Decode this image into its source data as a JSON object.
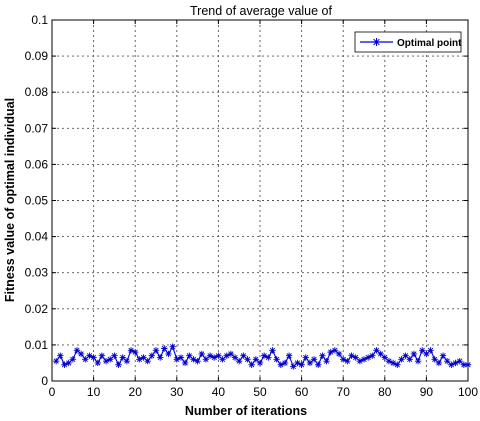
{
  "chart_data": {
    "type": "line",
    "title": "Trend of average value of",
    "xlabel": "Number of iterations",
    "ylabel": "Fitness value of optimal individual",
    "xlim": [
      0,
      100
    ],
    "ylim": [
      0,
      0.1
    ],
    "xticks": [
      "0",
      "10",
      "20",
      "30",
      "40",
      "50",
      "60",
      "70",
      "80",
      "90",
      "100"
    ],
    "yticks": [
      "0",
      "0.01",
      "0.02",
      "0.03",
      "0.04",
      "0.05",
      "0.06",
      "0.07",
      "0.08",
      "0.09",
      "0.1"
    ],
    "grid": true,
    "legend_position": "top-right",
    "series": [
      {
        "name": "Optimal point",
        "color": "#0000cc",
        "marker": "star",
        "x": [
          1,
          2,
          3,
          4,
          5,
          6,
          7,
          8,
          9,
          10,
          11,
          12,
          13,
          14,
          15,
          16,
          17,
          18,
          19,
          20,
          21,
          22,
          23,
          24,
          25,
          26,
          27,
          28,
          29,
          30,
          31,
          32,
          33,
          34,
          35,
          36,
          37,
          38,
          39,
          40,
          41,
          42,
          43,
          44,
          45,
          46,
          47,
          48,
          49,
          50,
          51,
          52,
          53,
          54,
          55,
          56,
          57,
          58,
          59,
          60,
          61,
          62,
          63,
          64,
          65,
          66,
          67,
          68,
          69,
          70,
          71,
          72,
          73,
          74,
          75,
          76,
          77,
          78,
          79,
          80,
          81,
          82,
          83,
          84,
          85,
          86,
          87,
          88,
          89,
          90,
          91,
          92,
          93,
          94,
          95,
          96,
          97,
          98,
          99,
          100
        ],
        "y": [
          0.0055,
          0.007,
          0.0045,
          0.005,
          0.006,
          0.0085,
          0.0075,
          0.006,
          0.007,
          0.0065,
          0.005,
          0.007,
          0.0055,
          0.006,
          0.007,
          0.0045,
          0.0065,
          0.0055,
          0.0085,
          0.008,
          0.006,
          0.0065,
          0.0055,
          0.007,
          0.0085,
          0.0065,
          0.009,
          0.0075,
          0.0095,
          0.006,
          0.0065,
          0.005,
          0.007,
          0.006,
          0.0055,
          0.0075,
          0.006,
          0.007,
          0.0065,
          0.007,
          0.006,
          0.007,
          0.0075,
          0.0065,
          0.0055,
          0.007,
          0.006,
          0.0045,
          0.006,
          0.005,
          0.007,
          0.0065,
          0.0085,
          0.006,
          0.0045,
          0.005,
          0.007,
          0.004,
          0.005,
          0.0045,
          0.0065,
          0.005,
          0.006,
          0.0045,
          0.007,
          0.0055,
          0.008,
          0.0085,
          0.0075,
          0.006,
          0.0055,
          0.007,
          0.0065,
          0.0055,
          0.006,
          0.0065,
          0.007,
          0.0085,
          0.0075,
          0.0065,
          0.0055,
          0.005,
          0.0045,
          0.006,
          0.007,
          0.006,
          0.0075,
          0.0055,
          0.0085,
          0.0075,
          0.0085,
          0.006,
          0.005,
          0.007,
          0.0055,
          0.0045,
          0.005,
          0.0055,
          0.0045,
          0.0045
        ]
      }
    ]
  }
}
